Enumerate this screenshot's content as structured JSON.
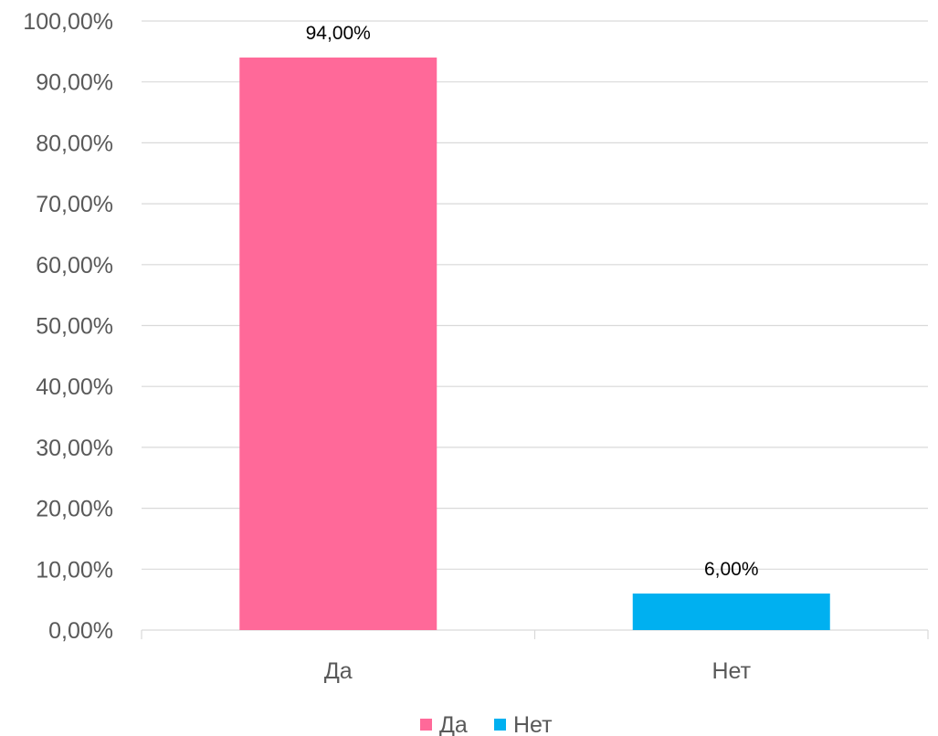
{
  "chart_data": {
    "type": "bar",
    "categories": [
      "Да",
      "Нет"
    ],
    "values": [
      94.0,
      6.0
    ],
    "value_labels": [
      "94,00%",
      "6,00%"
    ],
    "colors": [
      "#FF6999",
      "#00B0F0"
    ],
    "ylim": [
      0,
      100
    ],
    "y_ticks": [
      0,
      10,
      20,
      30,
      40,
      50,
      60,
      70,
      80,
      90,
      100
    ],
    "y_tick_labels": [
      "0,00%",
      "10,00%",
      "20,00%",
      "30,00%",
      "40,00%",
      "50,00%",
      "60,00%",
      "70,00%",
      "80,00%",
      "90,00%",
      "100,00%"
    ],
    "grid": true,
    "legend": {
      "position": "bottom",
      "entries": [
        {
          "label": "Да",
          "color": "#FF6999"
        },
        {
          "label": "Нет",
          "color": "#00B0F0"
        }
      ]
    }
  }
}
